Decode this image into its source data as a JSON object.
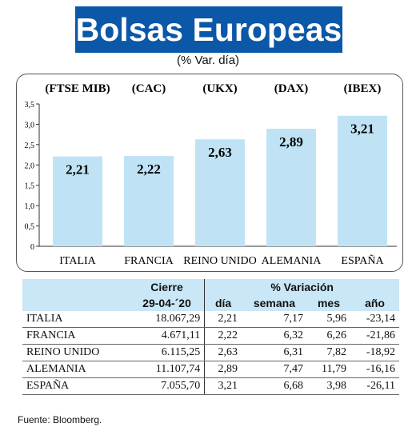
{
  "title": "Bolsas Europeas",
  "subtitle": "(% Var. día)",
  "chart_data": {
    "type": "bar",
    "categories": [
      "ITALIA",
      "FRANCIA",
      "REINO UNIDO",
      "ALEMANIA",
      "ESPAÑA"
    ],
    "indices": [
      "(FTSE MIB)",
      "(CAC)",
      "(UKX)",
      "(DAX)",
      "(IBEX)"
    ],
    "values": [
      2.21,
      2.22,
      2.63,
      2.89,
      3.21
    ],
    "value_labels": [
      "2,21",
      "2,22",
      "2,63",
      "2,89",
      "3,21"
    ],
    "yticks": [
      "0",
      "0,5",
      "1,0",
      "1,5",
      "2,0",
      "2,5",
      "3,0",
      "3,5"
    ],
    "ylim": [
      0,
      3.5
    ],
    "bar_color": "#bfe3f5"
  },
  "table": {
    "group_headers": [
      "Cierre",
      "% Variación"
    ],
    "sub_headers": [
      "29-04-´20",
      "día",
      "semana",
      "mes",
      "año"
    ],
    "rows": [
      [
        "ITALIA",
        "18.067,29",
        "2,21",
        "7,17",
        "5,96",
        "-23,14"
      ],
      [
        "FRANCIA",
        "4.671,11",
        "2,22",
        "6,32",
        "6,26",
        "-21,86"
      ],
      [
        "REINO UNIDO",
        "6.115,25",
        "2,63",
        "6,31",
        "7,82",
        "-18,92"
      ],
      [
        "ALEMANIA",
        "11.107,74",
        "2,89",
        "7,47",
        "11,79",
        "-16,16"
      ],
      [
        "ESPAÑA",
        "7.055,70",
        "3,21",
        "6,68",
        "3,98",
        "-26,11"
      ]
    ]
  },
  "source": "Fuente: Bloomberg."
}
